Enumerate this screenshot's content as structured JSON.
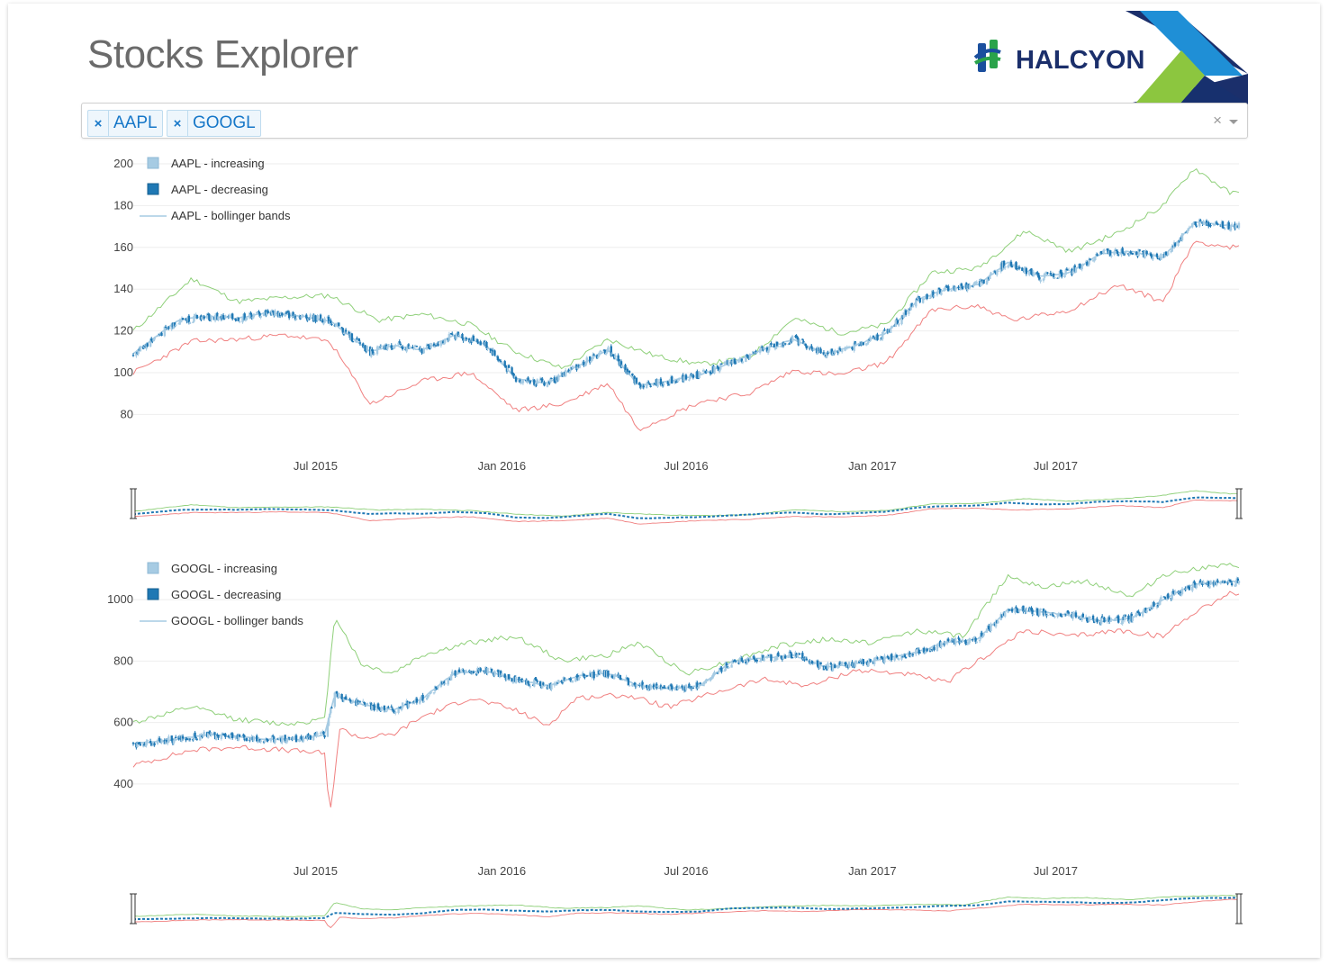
{
  "app": {
    "title": "Stocks Explorer"
  },
  "logo": {
    "text": "HALCYON"
  },
  "selector": {
    "tags": [
      {
        "remove_label": "×",
        "label": "AAPL"
      },
      {
        "remove_label": "×",
        "label": "GOOGL"
      }
    ],
    "clear_label": "×"
  },
  "colors": {
    "increasing": "#a6cbe3",
    "decreasing": "#1f78b4",
    "bollinger_mid": "#a6cbe3",
    "bollinger_upper": "#8fd07a",
    "bollinger_lower": "#f08080"
  },
  "chart_data": [
    {
      "type": "candlestick",
      "ticker": "AAPL",
      "x_range": [
        "2015-01-02",
        "2017-12-29"
      ],
      "x_ticks": [
        "Jul 2015",
        "Jan 2016",
        "Jul 2016",
        "Jan 2017",
        "Jul 2017"
      ],
      "x_tick_dates": [
        "2015-07-01",
        "2016-01-01",
        "2016-07-01",
        "2017-01-01",
        "2017-07-01"
      ],
      "ylim": [
        75,
        200
      ],
      "y_ticks": [
        200,
        180,
        160,
        140,
        120,
        100,
        80
      ],
      "grid": true,
      "range_slider": true,
      "legend": {
        "placement": "top-left",
        "entries": [
          "AAPL - increasing",
          "AAPL - decreasing",
          "AAPL - bollinger bands"
        ]
      },
      "close": {
        "dates": [
          "2015-01-02",
          "2015-02-15",
          "2015-03-15",
          "2015-04-15",
          "2015-05-15",
          "2015-06-15",
          "2015-07-15",
          "2015-08-24",
          "2015-09-15",
          "2015-10-15",
          "2015-11-15",
          "2015-12-15",
          "2016-01-15",
          "2016-02-15",
          "2016-03-15",
          "2016-04-15",
          "2016-05-15",
          "2016-06-15",
          "2016-07-15",
          "2016-08-15",
          "2016-09-15",
          "2016-10-15",
          "2016-11-15",
          "2016-12-15",
          "2017-01-15",
          "2017-02-15",
          "2017-03-15",
          "2017-04-15",
          "2017-05-15",
          "2017-06-15",
          "2017-07-15",
          "2017-08-15",
          "2017-09-15",
          "2017-10-15",
          "2017-11-15",
          "2017-12-29"
        ],
        "values": [
          109,
          125,
          127,
          126,
          129,
          127,
          125,
          110,
          113,
          111,
          118,
          114,
          97,
          95,
          103,
          111,
          94,
          96,
          99,
          105,
          111,
          116,
          109,
          113,
          119,
          135,
          140,
          142,
          153,
          146,
          148,
          157,
          158,
          155,
          172,
          170
        ]
      },
      "upper_band": {
        "dates": [
          "2015-01-02",
          "2015-03-01",
          "2015-04-15",
          "2015-06-01",
          "2015-07-15",
          "2015-09-01",
          "2015-10-15",
          "2015-12-01",
          "2016-01-15",
          "2016-03-01",
          "2016-04-15",
          "2016-06-01",
          "2016-07-15",
          "2016-09-01",
          "2016-10-15",
          "2016-12-01",
          "2017-01-15",
          "2017-03-01",
          "2017-04-15",
          "2017-06-01",
          "2017-07-15",
          "2017-09-01",
          "2017-10-15",
          "2017-11-15",
          "2017-12-20"
        ],
        "values": [
          120,
          145,
          134,
          136,
          137,
          125,
          128,
          123,
          110,
          102,
          116,
          108,
          104,
          107,
          126,
          119,
          123,
          148,
          150,
          168,
          158,
          167,
          180,
          198,
          186
        ]
      },
      "lower_band": {
        "dates": [
          "2015-01-02",
          "2015-03-01",
          "2015-04-15",
          "2015-06-01",
          "2015-07-15",
          "2015-08-24",
          "2015-10-15",
          "2015-12-01",
          "2016-01-15",
          "2016-03-01",
          "2016-04-15",
          "2016-05-15",
          "2016-07-15",
          "2016-09-01",
          "2016-10-15",
          "2016-12-01",
          "2017-01-15",
          "2017-03-01",
          "2017-04-15",
          "2017-05-20",
          "2017-07-15",
          "2017-09-01",
          "2017-10-15",
          "2017-11-15",
          "2017-12-20"
        ],
        "values": [
          100,
          115,
          116,
          118,
          115,
          85,
          96,
          100,
          82,
          85,
          95,
          73,
          86,
          90,
          101,
          99,
          105,
          130,
          132,
          125,
          130,
          142,
          134,
          163,
          160
        ]
      }
    },
    {
      "type": "candlestick",
      "ticker": "GOOGL",
      "x_range": [
        "2015-01-02",
        "2017-12-29"
      ],
      "x_ticks": [
        "Jul 2015",
        "Jan 2016",
        "Jul 2016",
        "Jan 2017",
        "Jul 2017"
      ],
      "x_tick_dates": [
        "2015-07-01",
        "2016-01-01",
        "2016-07-01",
        "2017-01-01",
        "2017-07-01"
      ],
      "ylim": [
        250,
        1100
      ],
      "y_ticks": [
        1000,
        800,
        600,
        400
      ],
      "grid": true,
      "range_slider": true,
      "legend": {
        "placement": "top-left",
        "entries": [
          "GOOGL - increasing",
          "GOOGL - decreasing",
          "GOOGL - bollinger bands"
        ]
      },
      "close": {
        "dates": [
          "2015-01-02",
          "2015-02-15",
          "2015-03-15",
          "2015-04-15",
          "2015-05-15",
          "2015-06-15",
          "2015-07-10",
          "2015-07-20",
          "2015-08-15",
          "2015-09-15",
          "2015-10-15",
          "2015-11-15",
          "2015-12-15",
          "2016-01-15",
          "2016-02-15",
          "2016-03-15",
          "2016-04-15",
          "2016-05-15",
          "2016-06-15",
          "2016-07-15",
          "2016-08-15",
          "2016-09-15",
          "2016-10-15",
          "2016-11-15",
          "2016-12-15",
          "2017-01-15",
          "2017-02-15",
          "2017-03-15",
          "2017-04-15",
          "2017-05-15",
          "2017-06-15",
          "2017-07-15",
          "2017-08-15",
          "2017-09-15",
          "2017-10-15",
          "2017-11-15",
          "2017-12-29"
        ],
        "values": [
          530,
          545,
          560,
          555,
          545,
          545,
          560,
          690,
          660,
          640,
          680,
          760,
          770,
          740,
          720,
          750,
          760,
          720,
          710,
          720,
          800,
          810,
          820,
          780,
          790,
          810,
          830,
          860,
          870,
          970,
          960,
          950,
          930,
          940,
          1000,
          1050,
          1060
        ]
      },
      "upper_band": {
        "dates": [
          "2015-01-02",
          "2015-03-01",
          "2015-04-15",
          "2015-06-01",
          "2015-07-10",
          "2015-07-20",
          "2015-08-15",
          "2015-09-15",
          "2015-10-15",
          "2015-12-01",
          "2016-01-15",
          "2016-03-01",
          "2016-04-15",
          "2016-05-15",
          "2016-07-01",
          "2016-08-15",
          "2016-10-01",
          "2016-11-15",
          "2017-01-01",
          "2017-02-15",
          "2017-04-01",
          "2017-05-15",
          "2017-06-15",
          "2017-08-01",
          "2017-09-15",
          "2017-10-15",
          "2017-11-15",
          "2017-12-20"
        ],
        "values": [
          600,
          650,
          610,
          595,
          610,
          950,
          790,
          760,
          820,
          860,
          880,
          800,
          820,
          860,
          760,
          800,
          850,
          870,
          860,
          900,
          880,
          1080,
          1040,
          1060,
          1010,
          1080,
          1100,
          1110
        ]
      },
      "lower_band": {
        "dates": [
          "2015-01-02",
          "2015-03-01",
          "2015-04-15",
          "2015-06-01",
          "2015-07-10",
          "2015-07-15",
          "2015-07-25",
          "2015-08-15",
          "2015-09-15",
          "2015-10-15",
          "2015-12-01",
          "2016-01-15",
          "2016-02-15",
          "2016-03-15",
          "2016-05-01",
          "2016-06-15",
          "2016-08-01",
          "2016-09-15",
          "2016-11-01",
          "2016-12-15",
          "2017-02-01",
          "2017-03-15",
          "2017-04-15",
          "2017-06-01",
          "2017-07-15",
          "2017-09-01",
          "2017-10-15",
          "2017-11-15",
          "2017-12-20"
        ],
        "values": [
          460,
          510,
          520,
          510,
          500,
          290,
          580,
          550,
          560,
          620,
          680,
          640,
          590,
          680,
          690,
          650,
          700,
          740,
          720,
          770,
          760,
          730,
          800,
          900,
          880,
          900,
          880,
          960,
          1020
        ]
      }
    }
  ]
}
